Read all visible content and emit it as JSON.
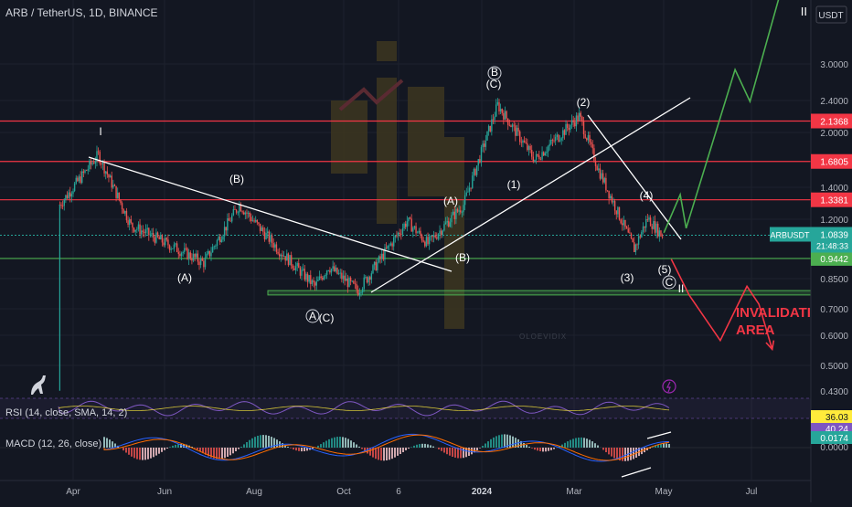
{
  "header": {
    "symbol": "ARB / TetherUS, 1D, BINANCE",
    "currency": "USDT"
  },
  "price_scale": {
    "ticks": [
      "3.0000",
      "2.4000",
      "2.0000",
      "1.4000",
      "1.2000",
      "0.8500",
      "0.7000",
      "0.6000",
      "0.5000",
      "0.4300"
    ],
    "badges": [
      {
        "label": "2.1368",
        "color": "#f23645"
      },
      {
        "label": "1.6805",
        "color": "#f23645"
      },
      {
        "label": "1.3381",
        "color": "#f23645"
      },
      {
        "label": "0.9442",
        "color": "#4caf50"
      }
    ],
    "current": {
      "symbol": "ARBUSDT",
      "price": "1.0839",
      "countdown": "21:48:33",
      "color": "#26a69a"
    }
  },
  "time_axis": [
    "Apr",
    "Jun",
    "Aug",
    "Oct",
    "6",
    "2024",
    "Mar",
    "May",
    "Jul"
  ],
  "labels": {
    "waves": [
      "I",
      "(B)",
      "(A)",
      "A",
      "(C)",
      "(A)",
      "(B)",
      "B",
      "(C)",
      "(1)",
      "(2)",
      "(3)",
      "(4)",
      "(5)",
      "C",
      "II"
    ],
    "invalidation": "INVALIDATION",
    "area": "AREA",
    "watermark": "OLOEVIDIX"
  },
  "indicators": {
    "rsi": {
      "title": "RSI (14, close, SMA, 14, 2)",
      "value": "40.24",
      "sma": "36.03",
      "value_color": "#7e57c2",
      "sma_color": "#ffeb3b"
    },
    "macd": {
      "title": "MACD (12, 26, close)",
      "value": "0.0174",
      "zero": "0.0000",
      "value_color": "#26a69a"
    }
  },
  "chart_data": {
    "type": "candlestick",
    "title": "ARB / TetherUS, 1D, BINANCE",
    "xlabel": "",
    "ylabel": "USDT",
    "y_scale": "log",
    "ylim": [
      0.43,
      3.3
    ],
    "price_path_approx": [
      {
        "t": "2023-03-23",
        "p": 1.3
      },
      {
        "t": "2023-04-18",
        "p": 1.75
      },
      {
        "t": "2023-05-10",
        "p": 1.15
      },
      {
        "t": "2023-06-10",
        "p": 1.0
      },
      {
        "t": "2023-06-28",
        "p": 0.92
      },
      {
        "t": "2023-07-22",
        "p": 1.3
      },
      {
        "t": "2023-08-17",
        "p": 1.0
      },
      {
        "t": "2023-09-11",
        "p": 0.8
      },
      {
        "t": "2023-09-20",
        "p": 0.9
      },
      {
        "t": "2023-10-10",
        "p": 0.78
      },
      {
        "t": "2023-11-12",
        "p": 1.18
      },
      {
        "t": "2023-11-26",
        "p": 1.03
      },
      {
        "t": "2023-12-20",
        "p": 1.3
      },
      {
        "t": "2024-01-12",
        "p": 2.35
      },
      {
        "t": "2024-02-06",
        "p": 1.7
      },
      {
        "t": "2024-03-07",
        "p": 2.2
      },
      {
        "t": "2024-03-20",
        "p": 1.6
      },
      {
        "t": "2024-04-13",
        "p": 1.0
      },
      {
        "t": "2024-04-22",
        "p": 1.2
      },
      {
        "t": "2024-05-02",
        "p": 1.08
      }
    ],
    "horizontal_levels": [
      {
        "value": 2.1368,
        "color": "#f23645"
      },
      {
        "value": 1.6805,
        "color": "#f23645"
      },
      {
        "value": 1.3381,
        "color": "#f23645"
      },
      {
        "value": 0.9442,
        "color": "#4caf50"
      }
    ],
    "support_zone": [
      0.76,
      0.78
    ],
    "current_price": 1.0839,
    "scenarios": {
      "bullish": [
        {
          "t": "2024-05-03",
          "p": 1.1
        },
        {
          "t": "2024-05-14",
          "p": 1.38
        },
        {
          "t": "2024-05-18",
          "p": 1.13
        },
        {
          "t": "2024-06-20",
          "p": 2.9
        },
        {
          "t": "2024-06-30",
          "p": 2.4
        },
        {
          "t": "2024-07-22",
          "p": 4.8
        }
      ],
      "bearish": [
        {
          "t": "2024-05-08",
          "p": 0.94
        },
        {
          "t": "2024-05-20",
          "p": 0.76
        },
        {
          "t": "2024-06-10",
          "p": 0.58
        },
        {
          "t": "2024-06-28",
          "p": 0.8
        },
        {
          "t": "2024-07-06",
          "p": 0.72
        },
        {
          "t": "2024-07-15",
          "p": 0.55
        }
      ]
    },
    "grid": true
  }
}
